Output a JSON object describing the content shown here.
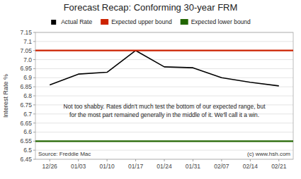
{
  "chart_data": {
    "type": "line",
    "title": "Forecast Recap: Conforming 30-year FRM",
    "y_label": "Interest Rate %",
    "categories": [
      "12/26",
      "01/03",
      "01/10",
      "01/17",
      "01/24",
      "01/31",
      "02/07",
      "02/14",
      "02/21"
    ],
    "series": [
      {
        "name": "Actual Rate",
        "color": "#000000",
        "type": "line",
        "marker": "square",
        "values": [
          6.86,
          6.92,
          6.93,
          7.05,
          6.96,
          6.955,
          6.9,
          6.875,
          6.855
        ]
      },
      {
        "name": "Expected upper bound",
        "color": "#CC2200",
        "type": "hline",
        "value": 7.05
      },
      {
        "name": "Expected lower bound",
        "color": "#226600",
        "type": "hline",
        "value": 6.55
      }
    ],
    "ylim": [
      6.45,
      7.15
    ],
    "yticks": [
      6.45,
      6.5,
      6.55,
      6.6,
      6.65,
      6.7,
      6.75,
      6.8,
      6.85,
      6.9,
      6.95,
      {
        "value": 7.0,
        "label": "7.0"
      },
      7.05,
      7.1,
      7.15
    ],
    "annotations": [
      {
        "text": "Not too shabby. Rates didn't much test the bottom of our expected range, but",
        "y": 6.72
      },
      {
        "text": "for the most part remained generally in the middle of it. We'll call it a win.",
        "y": 6.72
      }
    ],
    "source": "Source: Freddie Mac",
    "copyright": "(c) www.hsh.com",
    "grid": true,
    "legend": "top"
  }
}
